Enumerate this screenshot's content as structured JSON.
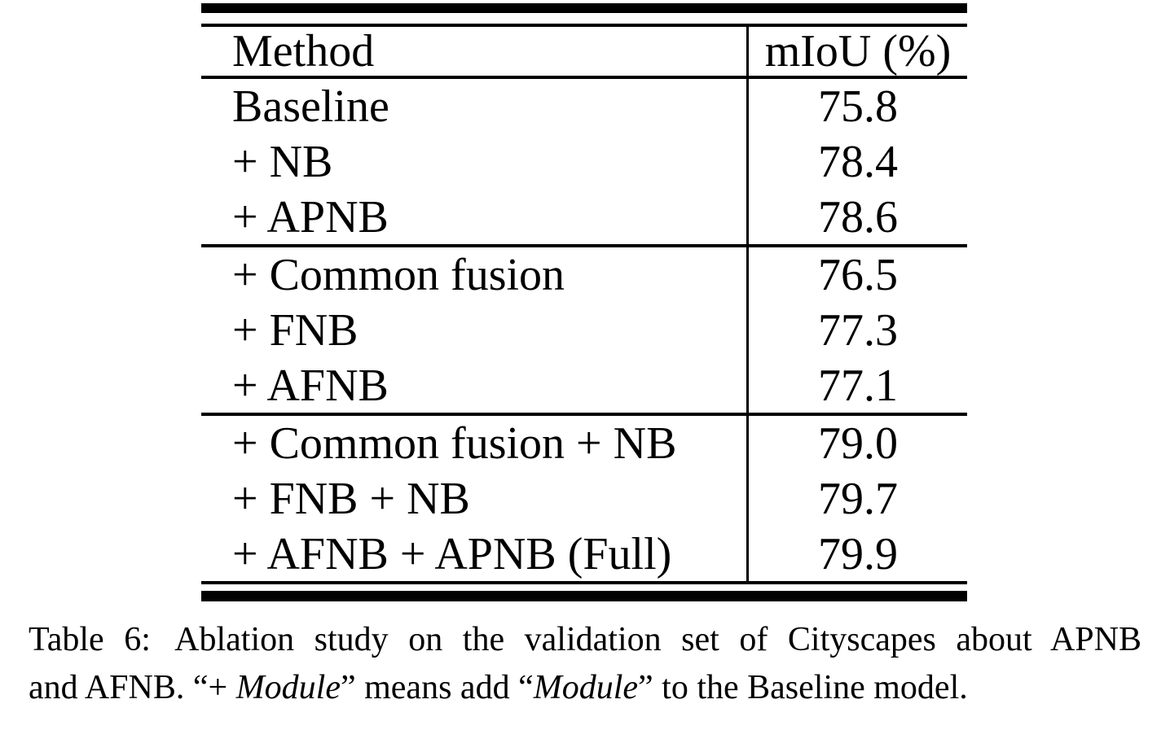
{
  "page": {
    "background": "#ffffff",
    "text_color": "#000000"
  },
  "table": {
    "header": {
      "method": "Method",
      "miou": "mIoU (%)"
    },
    "groups": [
      {
        "rows": [
          {
            "method": "Baseline",
            "miou": "75.8"
          },
          {
            "method": "+ NB",
            "miou": "78.4"
          },
          {
            "method": "+ APNB",
            "miou": "78.6"
          }
        ]
      },
      {
        "rows": [
          {
            "method": "+ Common fusion",
            "miou": "76.5"
          },
          {
            "method": "+ FNB",
            "miou": "77.3"
          },
          {
            "method": "+ AFNB",
            "miou": "77.1"
          }
        ]
      },
      {
        "rows": [
          {
            "method": "+ Common fusion + NB",
            "miou": "79.0"
          },
          {
            "method": "+ FNB + NB",
            "miou": "79.7"
          },
          {
            "method": "+ AFNB + APNB (Full)",
            "miou": "79.9"
          }
        ]
      }
    ]
  },
  "caption": {
    "lines": [
      {
        "segments": [
          {
            "text": "Table 6:",
            "italic": false,
            "gap_after": true
          },
          {
            "text": " Ablation study on the validation set of Cityscapes about APNB",
            "italic": false
          }
        ]
      },
      {
        "segments": [
          {
            "text": "and AFNB. “+ ",
            "italic": false
          },
          {
            "text": "Module",
            "italic": true
          },
          {
            "text": "” means add “",
            "italic": false
          },
          {
            "text": "Module",
            "italic": true
          },
          {
            "text": "” to the Baseline model.",
            "italic": false
          }
        ]
      }
    ]
  }
}
